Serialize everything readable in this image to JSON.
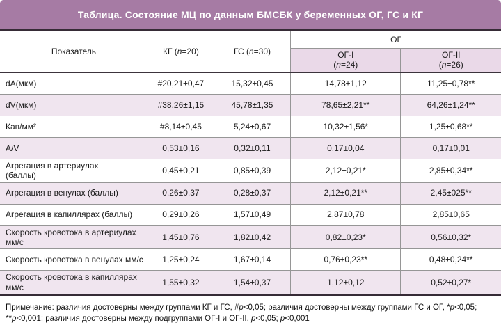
{
  "title": "Таблица. Состояние МЦ по данным БМСБК у беременных ОГ, ГС и КГ",
  "colors": {
    "title_band": "#a67ba4",
    "stripe_pink": "#f0e5ef",
    "subheader_pink": "#ead9e8",
    "dark_rule": "#362b36",
    "grid_border": "#969696",
    "title_text": "#ffffff"
  },
  "header": {
    "indicator": "Показатель",
    "kg": [
      {
        "t": "КГ ("
      },
      {
        "t": "n",
        "i": true
      },
      {
        "t": "=20)"
      }
    ],
    "gs": [
      {
        "t": "ГС ("
      },
      {
        "t": "n",
        "i": true
      },
      {
        "t": "=30)"
      }
    ],
    "og_group": "ОГ",
    "og1": [
      {
        "t": "ОГ-I"
      },
      {
        "br": true
      },
      {
        "t": "("
      },
      {
        "t": "n",
        "i": true
      },
      {
        "t": "=24)"
      }
    ],
    "og2": [
      {
        "t": "ОГ-II"
      },
      {
        "br": true
      },
      {
        "t": "("
      },
      {
        "t": "n",
        "i": true
      },
      {
        "t": "=26)"
      }
    ]
  },
  "rows": [
    {
      "label": "dA(мкм)",
      "kg": "#20,21±0,47",
      "gs": "15,32±0,45",
      "og1": "14,78±1,12",
      "og2": "11,25±0,78**"
    },
    {
      "label": "dV(мкм)",
      "kg": "#38,26±1,15",
      "gs": "45,78±1,35",
      "og1": "78,65±2,21**",
      "og2": "64,26±1,24**"
    },
    {
      "label": "Кап/мм²",
      "kg": "#8,14±0,45",
      "gs": "5,24±0,67",
      "og1": "10,32±1,56*",
      "og2": "1,25±0,68**"
    },
    {
      "label": "A/V",
      "kg": "0,53±0,16",
      "gs": "0,32±0,11",
      "og1": "0,17±0,04",
      "og2": "0,17±0,01"
    },
    {
      "label": "Агрегация в артериулах\n(баллы)",
      "kg": "0,45±0,21",
      "gs": "0,85±0,39",
      "og1": "2,12±0,21*",
      "og2": "2,85±0,34**"
    },
    {
      "label": "Агрегация в венулах (баллы)",
      "kg": "0,26±0,37",
      "gs": "0,28±0,37",
      "og1": "2,12±0,21**",
      "og2": "2,45±025**"
    },
    {
      "label": "Агрегация в капиллярах (баллы)",
      "kg": "0,29±0,26",
      "gs": "1,57±0,49",
      "og1": "2,87±0,78",
      "og2": "2,85±0,65"
    },
    {
      "label": "Скорость кровотока в артериулах мм/с",
      "kg": "1,45±0,76",
      "gs": "1,82±0,42",
      "og1": "0,82±0,23*",
      "og2": "0,56±0,32*"
    },
    {
      "label": "Скорость кровотока в венулах мм/с",
      "kg": "1,25±0,24",
      "gs": "1,67±0,14",
      "og1": "0,76±0,23**",
      "og2": "0,48±0,24**"
    },
    {
      "label": "Скорость кровотока в капиллярах мм/с",
      "kg": "1,55±0,32",
      "gs": "1,54±0,37",
      "og1": "1,12±0,12",
      "og2": "0,52±0,27*"
    }
  ],
  "footnote": {
    "line1": [
      {
        "t": "Примечание: различия достоверны между группами КГ и ГС, #"
      },
      {
        "t": "p",
        "i": true
      },
      {
        "t": "<0,05; различия достоверны между группами ГС и ОГ, *"
      },
      {
        "t": "p",
        "i": true
      },
      {
        "t": "<0,05;"
      }
    ],
    "line2": [
      {
        "t": "**"
      },
      {
        "t": "p",
        "i": true
      },
      {
        "t": "<0,001; различия достоверны между подгруппами ОГ-I и ОГ-II, "
      },
      {
        "t": "p",
        "i": true
      },
      {
        "t": "<0,05; "
      },
      {
        "t": "p",
        "i": true
      },
      {
        "t": "<0,001"
      }
    ]
  }
}
